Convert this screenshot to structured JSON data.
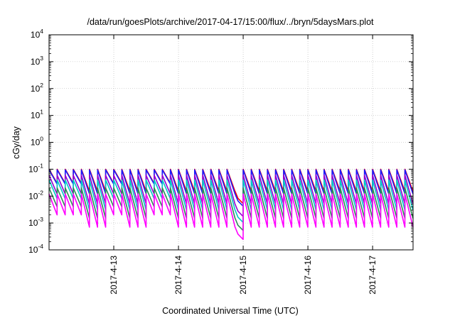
{
  "chart_data": {
    "type": "line",
    "title": "/data/run/goesPlots/archive/2017-04-17/15:00/flux/../bryn/5daysMars.plot",
    "xlabel": "Coordinated Universal Time (UTC)",
    "ylabel": "cGy/day",
    "y_scale": "log",
    "ylim": [
      0.0001,
      10000
    ],
    "y_ticks": [
      {
        "base": "10",
        "exp": "4"
      },
      {
        "base": "10",
        "exp": "3"
      },
      {
        "base": "10",
        "exp": "2"
      },
      {
        "base": "10",
        "exp": "1"
      },
      {
        "base": "10",
        "exp": "0"
      },
      {
        "base": "10",
        "exp": "-1"
      },
      {
        "base": "10",
        "exp": "-2"
      },
      {
        "base": "10",
        "exp": "-3"
      },
      {
        "base": "10",
        "exp": "-4"
      }
    ],
    "xlim": [
      "2017-04-12 00:00",
      "2017-04-17 15:00"
    ],
    "x_ticks": [
      "2017-4-13",
      "2017-4-14",
      "2017-4-15",
      "2017-4-16",
      "2017-4-17"
    ],
    "grid": true,
    "legend": "none",
    "sawtooth": {
      "cycle_hours": 3,
      "gap": {
        "start": "2017-04-14 21:00",
        "end": "2017-04-15 00:00"
      },
      "elevated_intervals": [
        {
          "start": "2017-04-12 00:00",
          "end": "2017-04-12 11:00"
        },
        {
          "start": "2017-04-12 21:00",
          "end": "2017-04-13 03:00"
        },
        {
          "start": "2017-04-13 12:00",
          "end": "2017-04-13 19:00"
        }
      ]
    },
    "series": [
      {
        "color": "#ff0000",
        "peak": 0.1,
        "low": 0.015,
        "elevated_low": 0.03
      },
      {
        "color": "#1a1aff",
        "peak": 0.095,
        "low": 0.012,
        "elevated_low": 0.028
      },
      {
        "color": "#9400d3",
        "peak": 0.06,
        "low": 0.005,
        "elevated_low": 0.012
      },
      {
        "color": "#00c8c8",
        "peak": 0.04,
        "low": 0.003,
        "elevated_low": 0.008
      },
      {
        "color": "#2e8b57",
        "peak": 0.02,
        "low": 0.0015,
        "elevated_low": 0.004
      },
      {
        "color": "#ff00ff",
        "peak": 0.012,
        "low": 0.0007,
        "elevated_low": 0.002
      }
    ]
  }
}
